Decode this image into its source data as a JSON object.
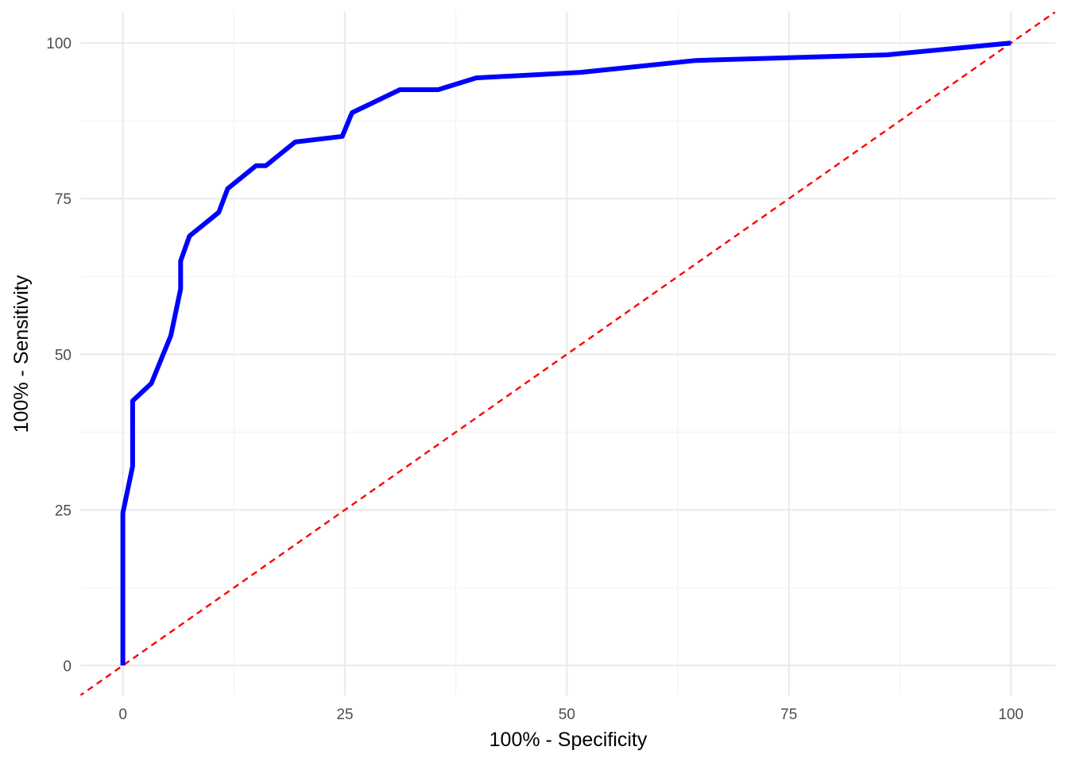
{
  "chart_data": {
    "type": "line",
    "title": "",
    "xlabel": "100% - Specificity",
    "ylabel": "100% - Sensitivity",
    "xlim": [
      -4.8,
      105
    ],
    "ylim": [
      -4.8,
      105
    ],
    "x_ticks": [
      0,
      25,
      50,
      75,
      100
    ],
    "y_ticks": [
      0,
      25,
      50,
      75,
      100
    ],
    "x_tick_labels": [
      "0",
      "25",
      "50",
      "75",
      "100"
    ],
    "y_tick_labels": [
      "0",
      "25",
      "50",
      "75",
      "100"
    ],
    "grid": true,
    "legend": "none",
    "series": [
      {
        "color": "#0000ff",
        "style": "solid",
        "x": [
          0,
          0,
          1.1,
          1.1,
          3.2,
          5.4,
          6.5,
          6.5,
          7.5,
          10.8,
          11.8,
          15.0,
          16.1,
          19.4,
          24.7,
          25.8,
          31.2,
          35.5,
          39.8,
          51.6,
          64.5,
          86.0,
          100
        ],
        "y": [
          0,
          24.5,
          32.0,
          42.5,
          45.3,
          53.0,
          60.5,
          65.0,
          69.0,
          72.8,
          76.6,
          80.3,
          80.3,
          84.1,
          85.0,
          88.8,
          92.5,
          92.5,
          94.4,
          95.3,
          97.2,
          98.1,
          100
        ]
      },
      {
        "color": "#ff0000",
        "style": "dashed",
        "x": [
          -5,
          105
        ],
        "y": [
          -5,
          105
        ]
      }
    ]
  }
}
